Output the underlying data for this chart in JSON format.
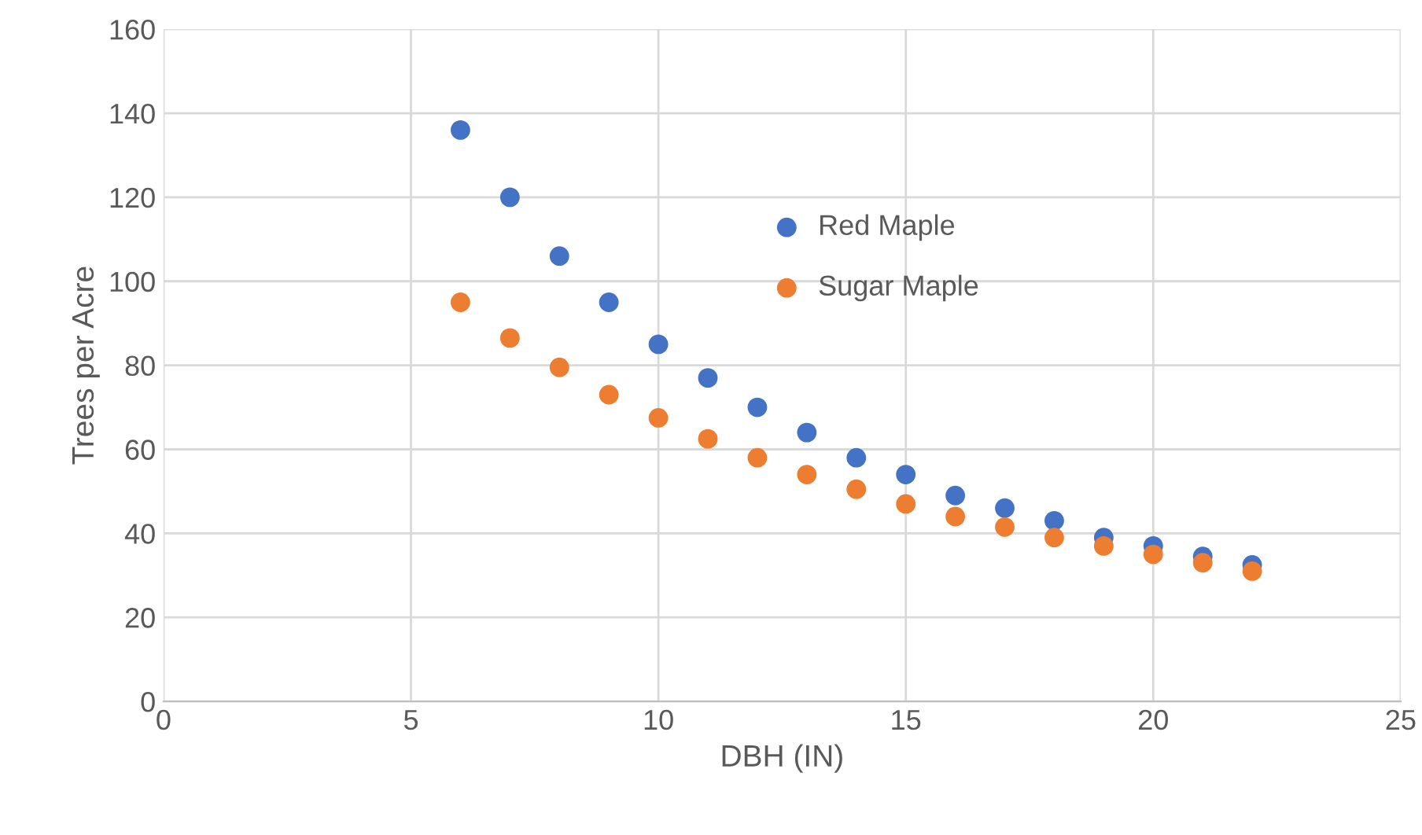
{
  "chart_data": {
    "type": "scatter",
    "xlabel": "DBH (IN)",
    "ylabel": "Trees per Acre",
    "x": [
      6,
      7,
      8,
      9,
      10,
      11,
      12,
      13,
      14,
      15,
      16,
      17,
      18,
      19,
      20,
      21,
      22
    ],
    "series": [
      {
        "name": "Red Maple",
        "color": "#4472c4",
        "values": [
          136,
          120,
          106,
          95,
          85,
          77,
          70,
          64,
          58,
          54,
          49,
          46,
          43,
          39,
          37,
          34.5,
          32.5
        ]
      },
      {
        "name": "Sugar Maple",
        "color": "#ed7d31",
        "values": [
          95,
          86.5,
          79.5,
          73,
          67.5,
          62.5,
          58,
          54,
          50.5,
          47,
          44,
          41.5,
          39,
          37,
          35,
          33,
          31
        ]
      }
    ],
    "xlim": [
      0,
      25
    ],
    "xticks": [
      0,
      5,
      10,
      15,
      20,
      25
    ],
    "ylim": [
      0,
      160
    ],
    "yticks": [
      0,
      20,
      40,
      60,
      80,
      100,
      120,
      140,
      160
    ],
    "grid": true,
    "legend": "center",
    "marker": "circle"
  }
}
